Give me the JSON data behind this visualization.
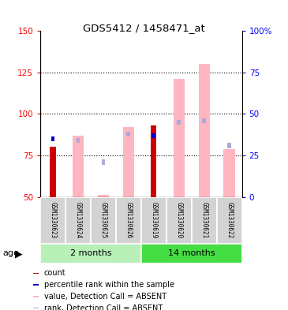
{
  "title": "GDS5412 / 1458471_at",
  "samples": [
    "GSM1330623",
    "GSM1330624",
    "GSM1330625",
    "GSM1330626",
    "GSM1330619",
    "GSM1330620",
    "GSM1330621",
    "GSM1330622"
  ],
  "ylim_left": [
    50,
    150
  ],
  "ylim_right": [
    0,
    100
  ],
  "yticks_left": [
    50,
    75,
    100,
    125,
    150
  ],
  "yticks_right": [
    0,
    25,
    50,
    75,
    100
  ],
  "ytick_labels_right": [
    "0",
    "25",
    "50",
    "75",
    "100%"
  ],
  "count_values": [
    80,
    null,
    null,
    null,
    93,
    null,
    null,
    null
  ],
  "percentile_vals": [
    85,
    null,
    null,
    null,
    87,
    null,
    null,
    null
  ],
  "absent_value": [
    null,
    87,
    51,
    92,
    null,
    121,
    130,
    79
  ],
  "absent_rank_left": [
    null,
    84,
    71,
    88,
    null,
    95,
    96,
    81
  ],
  "count_color": "#CC0000",
  "percentile_color": "#0000CC",
  "absent_value_color": "#FFB6C1",
  "absent_rank_color": "#AAAADD",
  "sample_area_color": "#D3D3D3",
  "group1_color": "#B8F0B8",
  "group2_color": "#44DD44",
  "gridline_color": "#000000",
  "background_color": "#FFFFFF"
}
